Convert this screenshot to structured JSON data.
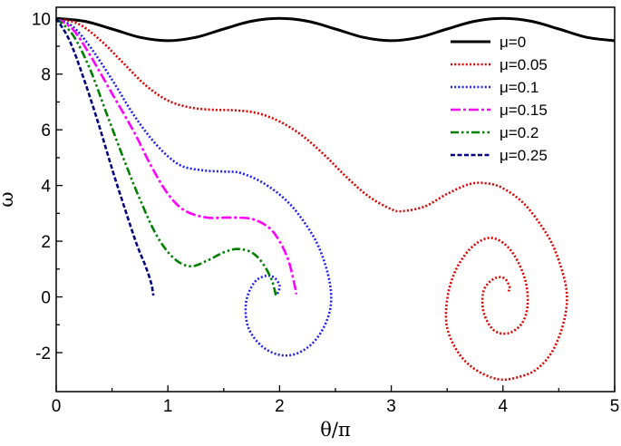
{
  "chart_data": {
    "type": "line",
    "title": "",
    "xlabel": "θ/π",
    "ylabel": "ω",
    "xlim": [
      0,
      5
    ],
    "ylim": [
      -3.4,
      10.4
    ],
    "xticks": [
      0,
      1,
      2,
      3,
      4,
      5
    ],
    "yticks": [
      -2,
      0,
      2,
      4,
      6,
      8,
      10
    ],
    "xtick_labels": [
      "0",
      "1",
      "2",
      "3",
      "4",
      "5"
    ],
    "ytick_labels": [
      "-2",
      "0",
      "2",
      "4",
      "6",
      "8",
      "10"
    ],
    "grid": false,
    "legend": "top-right",
    "series": [
      {
        "name": "μ=0",
        "color": "#000000",
        "style": "solid",
        "points": [
          [
            0,
            10
          ],
          [
            0.25,
            9.9
          ],
          [
            0.5,
            9.62
          ],
          [
            0.75,
            9.32
          ],
          [
            1,
            9.2
          ],
          [
            1.25,
            9.32
          ],
          [
            1.5,
            9.62
          ],
          [
            1.75,
            9.9
          ],
          [
            2,
            10
          ],
          [
            2.25,
            9.9
          ],
          [
            2.5,
            9.62
          ],
          [
            2.75,
            9.32
          ],
          [
            3,
            9.2
          ],
          [
            3.25,
            9.32
          ],
          [
            3.5,
            9.62
          ],
          [
            3.75,
            9.9
          ],
          [
            4,
            10
          ],
          [
            4.25,
            9.9
          ],
          [
            4.5,
            9.62
          ],
          [
            4.75,
            9.32
          ],
          [
            5,
            9.2
          ]
        ]
      },
      {
        "name": "μ=0.05",
        "color": "#e00000",
        "style": "dotted",
        "points": [
          [
            0,
            10
          ],
          [
            0.2,
            9.8
          ],
          [
            0.4,
            9.2
          ],
          [
            0.6,
            8.4
          ],
          [
            0.8,
            7.6
          ],
          [
            1,
            7.05
          ],
          [
            1.2,
            6.8
          ],
          [
            1.4,
            6.72
          ],
          [
            1.6,
            6.7
          ],
          [
            1.8,
            6.6
          ],
          [
            2,
            6.3
          ],
          [
            2.2,
            5.8
          ],
          [
            2.4,
            5.1
          ],
          [
            2.6,
            4.3
          ],
          [
            2.8,
            3.6
          ],
          [
            3,
            3.15
          ],
          [
            3.1,
            3.08
          ],
          [
            3.3,
            3.25
          ],
          [
            3.5,
            3.7
          ],
          [
            3.7,
            4.05
          ],
          [
            3.85,
            4.08
          ],
          [
            4,
            3.9
          ],
          [
            4.2,
            3.3
          ],
          [
            4.4,
            2.2
          ],
          [
            4.5,
            1.3
          ],
          [
            4.57,
            0.2
          ],
          [
            4.55,
            -0.8
          ],
          [
            4.45,
            -1.9
          ],
          [
            4.3,
            -2.6
          ],
          [
            4.12,
            -2.9
          ],
          [
            3.95,
            -2.95
          ],
          [
            3.75,
            -2.6
          ],
          [
            3.6,
            -2.0
          ],
          [
            3.5,
            -1.1
          ],
          [
            3.5,
            -0.1
          ],
          [
            3.57,
            0.9
          ],
          [
            3.7,
            1.7
          ],
          [
            3.85,
            2.1
          ],
          [
            3.98,
            2.0
          ],
          [
            4.1,
            1.5
          ],
          [
            4.2,
            0.6
          ],
          [
            4.22,
            -0.3
          ],
          [
            4.17,
            -0.95
          ],
          [
            4.05,
            -1.3
          ],
          [
            3.92,
            -1.2
          ],
          [
            3.83,
            -0.6
          ],
          [
            3.82,
            0.1
          ],
          [
            3.87,
            0.5
          ],
          [
            3.95,
            0.7
          ],
          [
            4.02,
            0.65
          ],
          [
            4.06,
            0.35
          ],
          [
            4.05,
            0.2
          ]
        ]
      },
      {
        "name": "μ=0.1",
        "color": "#2020f0",
        "style": "dotted",
        "points": [
          [
            0,
            10
          ],
          [
            0.15,
            9.7
          ],
          [
            0.3,
            9.0
          ],
          [
            0.5,
            7.8
          ],
          [
            0.7,
            6.5
          ],
          [
            0.9,
            5.45
          ],
          [
            1.1,
            4.75
          ],
          [
            1.3,
            4.55
          ],
          [
            1.5,
            4.5
          ],
          [
            1.65,
            4.45
          ],
          [
            1.85,
            4.1
          ],
          [
            2.05,
            3.5
          ],
          [
            2.2,
            2.8
          ],
          [
            2.35,
            1.8
          ],
          [
            2.45,
            0.5
          ],
          [
            2.45,
            -0.5
          ],
          [
            2.35,
            -1.4
          ],
          [
            2.2,
            -1.95
          ],
          [
            2.03,
            -2.1
          ],
          [
            1.85,
            -1.8
          ],
          [
            1.72,
            -1.1
          ],
          [
            1.7,
            -0.2
          ],
          [
            1.77,
            0.5
          ],
          [
            1.87,
            0.75
          ],
          [
            1.95,
            0.7
          ],
          [
            2.0,
            0.4
          ],
          [
            1.98,
            0.1
          ]
        ]
      },
      {
        "name": "μ=0.15",
        "color": "#ff00ff",
        "style": "dashdot",
        "points": [
          [
            0,
            10
          ],
          [
            0.15,
            9.6
          ],
          [
            0.3,
            8.7
          ],
          [
            0.5,
            7.3
          ],
          [
            0.7,
            5.9
          ],
          [
            0.85,
            4.7
          ],
          [
            1.0,
            3.7
          ],
          [
            1.15,
            3.1
          ],
          [
            1.35,
            2.85
          ],
          [
            1.55,
            2.85
          ],
          [
            1.75,
            2.8
          ],
          [
            1.9,
            2.5
          ],
          [
            2.0,
            2.0
          ],
          [
            2.08,
            1.3
          ],
          [
            2.13,
            0.5
          ],
          [
            2.15,
            0.1
          ]
        ]
      },
      {
        "name": "μ=0.2",
        "color": "#008000",
        "style": "dashdotdot",
        "points": [
          [
            0,
            10
          ],
          [
            0.15,
            9.4
          ],
          [
            0.3,
            8.2
          ],
          [
            0.45,
            6.6
          ],
          [
            0.6,
            5.0
          ],
          [
            0.75,
            3.5
          ],
          [
            0.9,
            2.2
          ],
          [
            1.05,
            1.4
          ],
          [
            1.2,
            1.1
          ],
          [
            1.35,
            1.3
          ],
          [
            1.5,
            1.6
          ],
          [
            1.62,
            1.72
          ],
          [
            1.75,
            1.6
          ],
          [
            1.85,
            1.2
          ],
          [
            1.93,
            0.6
          ],
          [
            1.97,
            0.0
          ]
        ]
      },
      {
        "name": "μ=0.25",
        "color": "#000080",
        "style": "dashed",
        "points": [
          [
            0,
            10
          ],
          [
            0.12,
            9.2
          ],
          [
            0.25,
            7.8
          ],
          [
            0.38,
            6.2
          ],
          [
            0.5,
            4.6
          ],
          [
            0.62,
            3.1
          ],
          [
            0.72,
            1.9
          ],
          [
            0.8,
            1.1
          ],
          [
            0.85,
            0.5
          ],
          [
            0.87,
            0.05
          ]
        ]
      }
    ]
  }
}
